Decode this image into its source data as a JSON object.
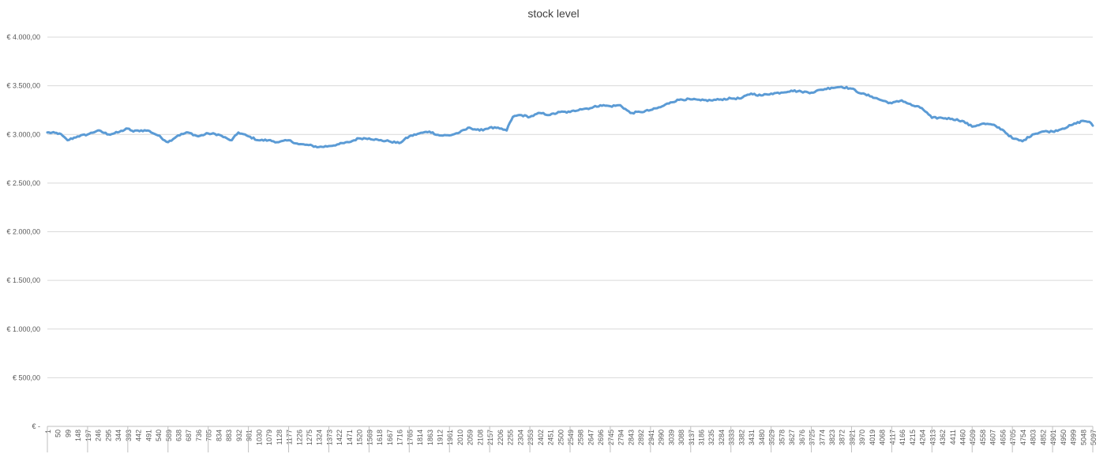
{
  "chart_data": {
    "type": "line",
    "title": "stock level",
    "xlabel": "",
    "ylabel": "",
    "ylim": [
      0,
      4000
    ],
    "xlim": [
      1,
      5097
    ],
    "grid": true,
    "legend": "none",
    "y_tick_values": [
      0,
      500,
      1000,
      1500,
      2000,
      2500,
      3000,
      3500,
      4000
    ],
    "y_tick_labels": [
      "€ -",
      "€ 500,00",
      "€ 1.000,00",
      "€ 1.500,00",
      "€ 2.000,00",
      "€ 2.500,00",
      "€ 3.000,00",
      "€ 3.500,00",
      "€ 4.000,00"
    ],
    "x_tick_labels": [
      "1",
      "50",
      "99",
      "148",
      "197",
      "246",
      "295",
      "344",
      "393",
      "442",
      "491",
      "540",
      "589",
      "638",
      "687",
      "736",
      "785",
      "834",
      "883",
      "932",
      "981",
      "1030",
      "1079",
      "1128",
      "1177",
      "1226",
      "1275",
      "1324",
      "1373",
      "1422",
      "1471",
      "1520",
      "1569",
      "1618",
      "1667",
      "1716",
      "1765",
      "1814",
      "1863",
      "1912",
      "1961",
      "2010",
      "2059",
      "2108",
      "2157",
      "2206",
      "2255",
      "2304",
      "2353",
      "2402",
      "2451",
      "2500",
      "2549",
      "2598",
      "2647",
      "2696",
      "2745",
      "2794",
      "2843",
      "2892",
      "2941",
      "2990",
      "3039",
      "3088",
      "3137",
      "3186",
      "3235",
      "3284",
      "3333",
      "3382",
      "3431",
      "3480",
      "3529",
      "3578",
      "3627",
      "3676",
      "3725",
      "3774",
      "3823",
      "3872",
      "3921",
      "3970",
      "4019",
      "4068",
      "4117",
      "4166",
      "4215",
      "4264",
      "4313",
      "4362",
      "4411",
      "4460",
      "4509",
      "4558",
      "4607",
      "4656",
      "4705",
      "4754",
      "4803",
      "4852",
      "4901",
      "4950",
      "4999",
      "5048",
      "5097"
    ],
    "series": [
      {
        "color": "#5b9bd5",
        "x": [
          1,
          60,
          99,
          148,
          197,
          246,
          300,
          344,
          393,
          420,
          442,
          491,
          540,
          589,
          638,
          687,
          736,
          785,
          834,
          883,
          900,
          932,
          981,
          1030,
          1079,
          1128,
          1177,
          1226,
          1275,
          1324,
          1373,
          1422,
          1471,
          1520,
          1569,
          1618,
          1667,
          1716,
          1765,
          1814,
          1863,
          1912,
          1961,
          2010,
          2059,
          2108,
          2157,
          2206,
          2240,
          2255,
          2270,
          2304,
          2353,
          2402,
          2451,
          2500,
          2549,
          2598,
          2647,
          2696,
          2745,
          2794,
          2843,
          2892,
          2941,
          2990,
          3039,
          3088,
          3137,
          3186,
          3235,
          3284,
          3333,
          3382,
          3431,
          3480,
          3529,
          3578,
          3627,
          3676,
          3725,
          3774,
          3823,
          3872,
          3921,
          3970,
          4019,
          4068,
          4117,
          4166,
          4215,
          4264,
          4313,
          4362,
          4411,
          4460,
          4509,
          4558,
          4607,
          4656,
          4705,
          4754,
          4803,
          4852,
          4901,
          4950,
          4999,
          5048,
          5080,
          5097
        ],
        "y": [
          3020,
          3010,
          2940,
          2980,
          3000,
          3040,
          3000,
          3020,
          3060,
          3030,
          3040,
          3040,
          2990,
          2920,
          2990,
          3020,
          2980,
          3010,
          3000,
          2950,
          2940,
          3020,
          2980,
          2940,
          2940,
          2920,
          2940,
          2900,
          2890,
          2870,
          2880,
          2900,
          2920,
          2960,
          2960,
          2940,
          2930,
          2910,
          2980,
          3010,
          3030,
          2990,
          2990,
          3020,
          3070,
          3040,
          3070,
          3060,
          3040,
          3120,
          3180,
          3200,
          3180,
          3220,
          3200,
          3230,
          3230,
          3260,
          3270,
          3300,
          3290,
          3300,
          3220,
          3230,
          3250,
          3280,
          3330,
          3360,
          3360,
          3350,
          3350,
          3360,
          3370,
          3370,
          3420,
          3400,
          3420,
          3430,
          3450,
          3440,
          3430,
          3460,
          3480,
          3490,
          3470,
          3420,
          3390,
          3350,
          3320,
          3350,
          3300,
          3270,
          3170,
          3170,
          3160,
          3140,
          3080,
          3110,
          3100,
          3050,
          2960,
          2930,
          3000,
          3030,
          3030,
          3060,
          3100,
          3140,
          3130,
          3090
        ]
      }
    ]
  }
}
